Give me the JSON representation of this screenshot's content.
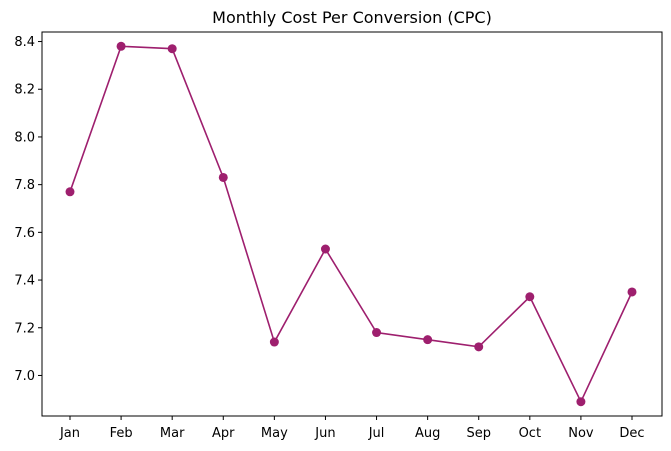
{
  "chart_data": {
    "type": "line",
    "title": "Monthly Cost Per Conversion (CPC)",
    "xlabel": "",
    "ylabel": "",
    "categories": [
      "Jan",
      "Feb",
      "Mar",
      "Apr",
      "May",
      "Jun",
      "Jul",
      "Aug",
      "Sep",
      "Oct",
      "Nov",
      "Dec"
    ],
    "series": [
      {
        "values": [
          7.77,
          8.38,
          8.37,
          7.83,
          7.14,
          7.53,
          7.18,
          7.15,
          7.12,
          7.33,
          6.89,
          7.35
        ],
        "color": "#9e1f6e",
        "marker": "circle"
      }
    ],
    "yticks": [
      "7.0",
      "7.2",
      "7.4",
      "7.6",
      "7.8",
      "8.0",
      "8.2",
      "8.4"
    ],
    "ylim": [
      6.83,
      8.44
    ],
    "grid": false,
    "legend": "none"
  }
}
